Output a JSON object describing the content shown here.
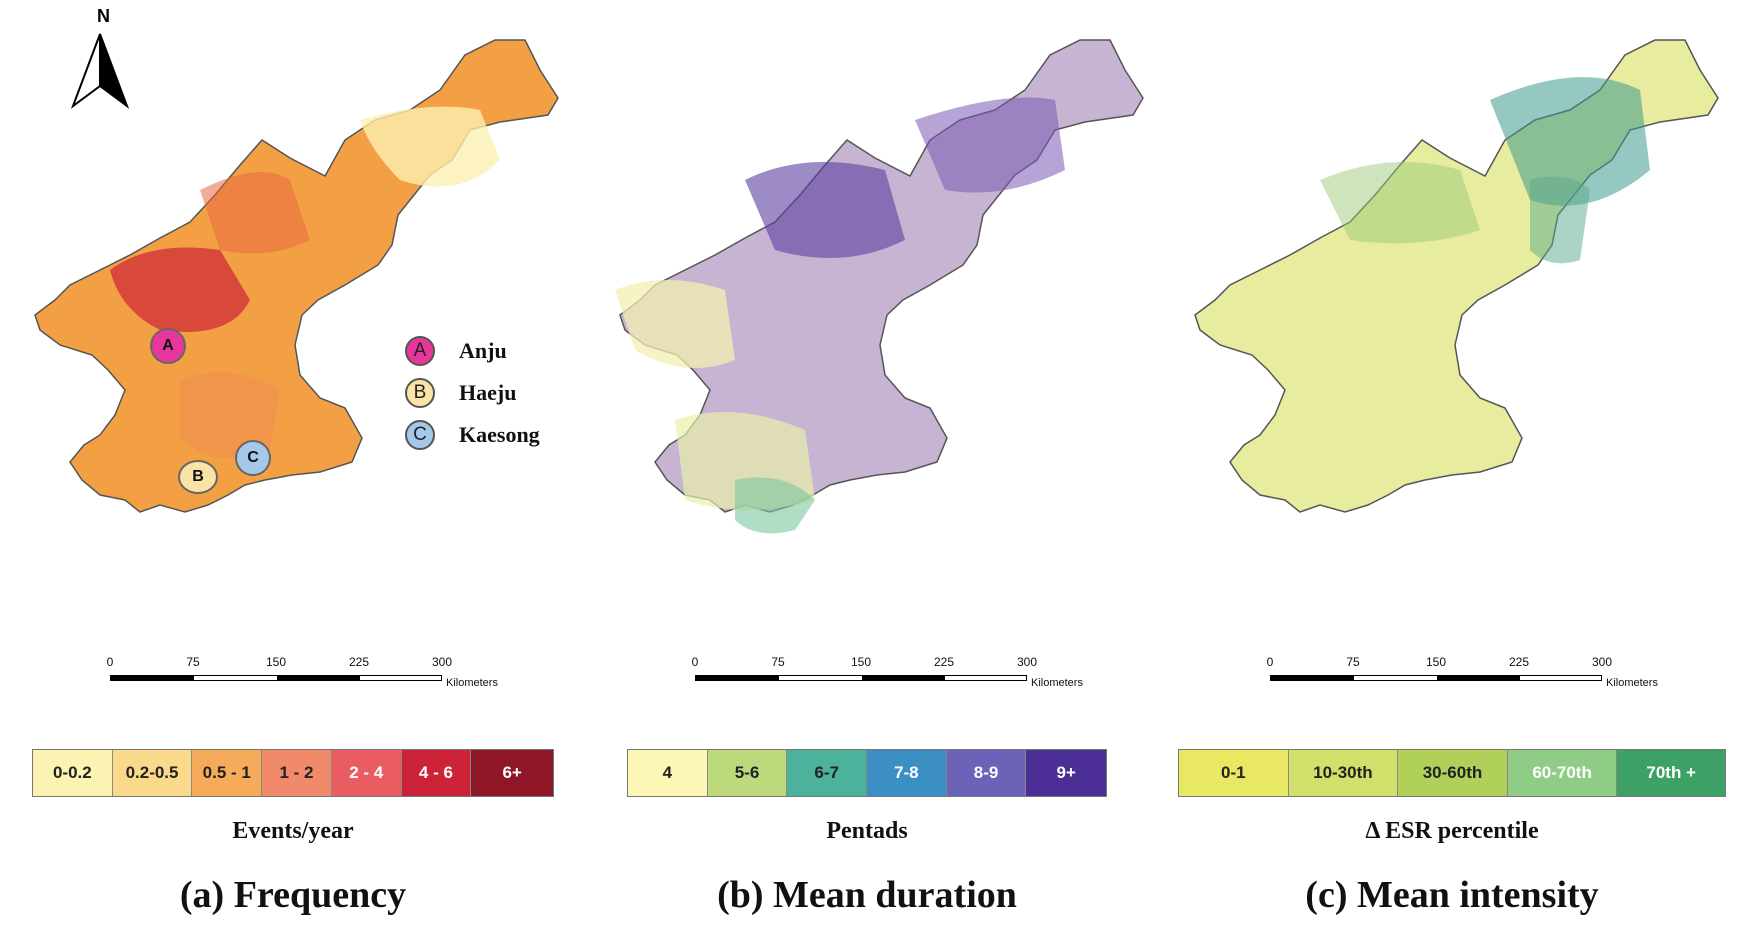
{
  "north_arrow": {
    "label": "N"
  },
  "scalebar": {
    "ticks": [
      "0",
      "75",
      "150",
      "225",
      "300"
    ],
    "units": "Kilometers"
  },
  "panels": [
    {
      "id": "a",
      "title": "(a) Frequency",
      "legend_title": "Events/year",
      "fill": "#f3a045",
      "legend": [
        {
          "label": "0-0.2",
          "color": "#fcf3b2",
          "text": "#222222"
        },
        {
          "label": "0.2-0.5",
          "color": "#fbd98a",
          "text": "#222222"
        },
        {
          "label": "0.5 - 1",
          "color": "#f5ab5a",
          "text": "#222222"
        },
        {
          "label": "1 - 2",
          "color": "#f08a6a",
          "text": "#222222"
        },
        {
          "label": "2 - 4",
          "color": "#e85c62",
          "text": "#ffffff"
        },
        {
          "label": "4 - 6",
          "color": "#cc2339",
          "text": "#ffffff"
        },
        {
          "label": "6+",
          "color": "#8e1626",
          "text": "#ffffff"
        }
      ]
    },
    {
      "id": "b",
      "title": "(b) Mean duration",
      "legend_title": "Pentads",
      "fill": "#c7b3d2",
      "legend": [
        {
          "label": "4",
          "color": "#fcf7b5",
          "text": "#222222"
        },
        {
          "label": "5-6",
          "color": "#bcd97c",
          "text": "#222222"
        },
        {
          "label": "6-7",
          "color": "#4db29b",
          "text": "#222222"
        },
        {
          "label": "7-8",
          "color": "#3b8fc2",
          "text": "#ffffff"
        },
        {
          "label": "8-9",
          "color": "#6a63b8",
          "text": "#ffffff"
        },
        {
          "label": "9+",
          "color": "#4b2e96",
          "text": "#ffffff"
        }
      ]
    },
    {
      "id": "c",
      "title": "(c) Mean intensity",
      "legend_title": "Δ ESR percentile",
      "fill": "#e7ec9f",
      "legend": [
        {
          "label": "0-1",
          "color": "#e9e863",
          "text": "#222222"
        },
        {
          "label": "10-30th",
          "color": "#d0e06a",
          "text": "#222222"
        },
        {
          "label": "30-60th",
          "color": "#b0d05a",
          "text": "#222222"
        },
        {
          "label": "60-70th",
          "color": "#8fcc86",
          "text": "#ffffff"
        },
        {
          "label": "70th +",
          "color": "#3da165",
          "text": "#ffffff"
        }
      ]
    }
  ],
  "cities": [
    {
      "marker": "A",
      "name": "Anju",
      "color": "#e8379c"
    },
    {
      "marker": "B",
      "name": "Haeju",
      "color": "#fae3a5"
    },
    {
      "marker": "C",
      "name": "Kaesong",
      "color": "#a6c8e8"
    }
  ]
}
